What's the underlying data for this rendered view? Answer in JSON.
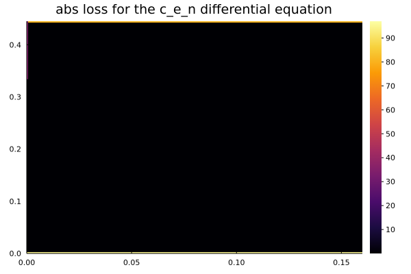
{
  "chart_data": {
    "type": "heatmap",
    "title": "abs loss for the c_e_n differential equation",
    "xlabel": "",
    "ylabel": "",
    "xlim": [
      0.0,
      0.16
    ],
    "ylim": [
      0.0,
      0.445
    ],
    "x_ticks": [
      {
        "value": 0.0,
        "label": "0.00"
      },
      {
        "value": 0.05,
        "label": "0.05"
      },
      {
        "value": 0.1,
        "label": "0.10"
      },
      {
        "value": 0.15,
        "label": "0.15"
      }
    ],
    "y_ticks": [
      {
        "value": 0.0,
        "label": "0.0"
      },
      {
        "value": 0.1,
        "label": "0.1"
      },
      {
        "value": 0.2,
        "label": "0.2"
      },
      {
        "value": 0.3,
        "label": "0.3"
      },
      {
        "value": 0.4,
        "label": "0.4"
      }
    ],
    "colorbar": {
      "colormap": "inferno",
      "range": [
        0,
        97
      ],
      "ticks": [
        10,
        20,
        30,
        40,
        50,
        60,
        70,
        80,
        90
      ],
      "stops": [
        "#000004",
        "#1b0c41",
        "#4a0c6b",
        "#781c6d",
        "#a52c60",
        "#cf4446",
        "#ed6925",
        "#fb9b06",
        "#f7d13d",
        "#fcffa4"
      ]
    },
    "field": {
      "interior_value": 0,
      "boundary_highlights": [
        {
          "edge": "top",
          "value": 80
        },
        {
          "edge": "bottom",
          "value": 95
        },
        {
          "edge": "left",
          "value": 35
        }
      ]
    },
    "grid": false,
    "legend": "none"
  }
}
